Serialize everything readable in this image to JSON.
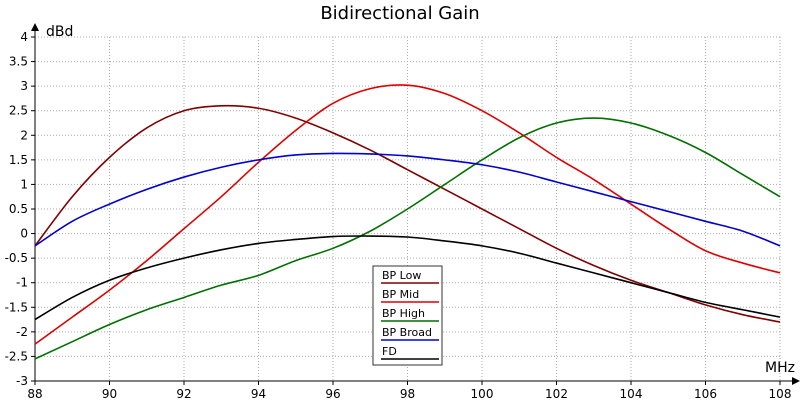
{
  "chart_data": {
    "type": "line",
    "title": "Bidirectional Gain",
    "xlabel": "MHz",
    "ylabel": "dBd",
    "xlim": [
      88,
      108
    ],
    "ylim": [
      -3,
      4
    ],
    "xticks": [
      88,
      90,
      92,
      94,
      96,
      98,
      100,
      102,
      104,
      106,
      108
    ],
    "yticks": [
      -3,
      -2.5,
      -2,
      -1.5,
      -1,
      -0.5,
      0,
      0.5,
      1,
      1.5,
      2,
      2.5,
      3,
      3.5,
      4
    ],
    "grid": true,
    "legend_position": "bottom-center",
    "series": [
      {
        "name": "BP Low",
        "color": "#800000",
        "x": [
          88,
          89,
          90,
          91,
          92,
          93,
          94,
          95,
          96,
          97,
          98,
          99,
          100,
          101,
          102,
          103,
          104,
          105,
          106,
          107,
          108
        ],
        "y": [
          -0.25,
          0.75,
          1.55,
          2.15,
          2.5,
          2.6,
          2.55,
          2.35,
          2.05,
          1.7,
          1.3,
          0.9,
          0.5,
          0.1,
          -0.3,
          -0.65,
          -0.95,
          -1.2,
          -1.45,
          -1.65,
          -1.8
        ]
      },
      {
        "name": "BP Mid",
        "color": "#e00000",
        "x": [
          88,
          89,
          90,
          91,
          92,
          93,
          94,
          95,
          96,
          97,
          98,
          99,
          100,
          101,
          102,
          103,
          104,
          105,
          106,
          107,
          108
        ],
        "y": [
          -2.25,
          -1.7,
          -1.15,
          -0.55,
          0.1,
          0.75,
          1.45,
          2.1,
          2.65,
          2.95,
          3.02,
          2.85,
          2.5,
          2.05,
          1.55,
          1.1,
          0.6,
          0.1,
          -0.35,
          -0.6,
          -0.8
        ]
      },
      {
        "name": "BP High",
        "color": "#007000",
        "x": [
          88,
          89,
          90,
          91,
          92,
          93,
          94,
          95,
          96,
          97,
          98,
          99,
          100,
          101,
          102,
          103,
          104,
          105,
          106,
          107,
          108
        ],
        "y": [
          -2.55,
          -2.2,
          -1.85,
          -1.55,
          -1.3,
          -1.05,
          -0.85,
          -0.55,
          -0.3,
          0.05,
          0.5,
          1.0,
          1.5,
          1.95,
          2.25,
          2.35,
          2.25,
          2.0,
          1.65,
          1.2,
          0.75
        ]
      },
      {
        "name": "BP Broad",
        "color": "#0000d0",
        "x": [
          88,
          89,
          90,
          91,
          92,
          93,
          94,
          95,
          96,
          97,
          98,
          99,
          100,
          101,
          102,
          103,
          104,
          105,
          106,
          107,
          108
        ],
        "y": [
          -0.25,
          0.25,
          0.6,
          0.9,
          1.15,
          1.35,
          1.5,
          1.6,
          1.63,
          1.62,
          1.58,
          1.5,
          1.4,
          1.25,
          1.05,
          0.85,
          0.65,
          0.45,
          0.25,
          0.05,
          -0.25
        ]
      },
      {
        "name": "FD",
        "color": "#000000",
        "x": [
          88,
          89,
          90,
          91,
          92,
          93,
          94,
          95,
          96,
          97,
          98,
          99,
          100,
          101,
          102,
          103,
          104,
          105,
          106,
          107,
          108
        ],
        "y": [
          -1.75,
          -1.3,
          -0.95,
          -0.7,
          -0.5,
          -0.33,
          -0.2,
          -0.12,
          -0.06,
          -0.05,
          -0.07,
          -0.15,
          -0.25,
          -0.4,
          -0.6,
          -0.8,
          -1.0,
          -1.2,
          -1.4,
          -1.55,
          -1.7
        ]
      }
    ]
  }
}
